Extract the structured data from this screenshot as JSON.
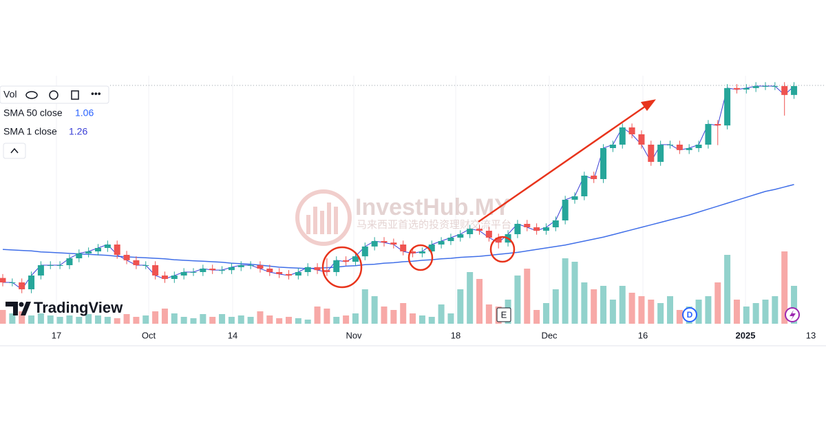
{
  "legend": {
    "volume": "Vol",
    "sma50": {
      "label": "SMA 50 close",
      "value": 1.06
    },
    "sma1": {
      "label": "SMA 1 close",
      "value": 1.26
    }
  },
  "watermark": {
    "brand": "InvestHub.MY",
    "tagline": "马来西亚首选的投资理财交流平台"
  },
  "logo": "TradingView",
  "markers": [
    "E",
    "D"
  ],
  "chart_data": {
    "type": "candlestick",
    "x_labels": [
      "17",
      "Oct",
      "14",
      "Nov",
      "18",
      "Dec",
      "16",
      "2025",
      "13"
    ],
    "ylim": [
      0.777,
      1.295
    ],
    "volume_lim": [
      0,
      110
    ],
    "up_color": "#26a69a",
    "down_color": "#ef5350",
    "up_volume_color": "#92d2cc",
    "down_volume_color": "#f7a9a7",
    "sma50_color": "#3f6ee8",
    "sma1_color": "#3a3fd6",
    "open": [
      0.87,
      0.861,
      0.861,
      0.847,
      0.875,
      0.896,
      0.896,
      0.896,
      0.91,
      0.92,
      0.924,
      0.931,
      0.938,
      0.917,
      0.906,
      0.896,
      0.896,
      0.875,
      0.868,
      0.875,
      0.882,
      0.882,
      0.889,
      0.886,
      0.886,
      0.892,
      0.896,
      0.896,
      0.889,
      0.882,
      0.878,
      0.875,
      0.882,
      0.892,
      0.886,
      0.882,
      0.906,
      0.903,
      0.914,
      0.934,
      0.945,
      0.942,
      0.938,
      0.924,
      0.92,
      0.924,
      0.938,
      0.945,
      0.952,
      0.959,
      0.97,
      0.966,
      0.952,
      0.942,
      0.959,
      0.98,
      0.973,
      0.966,
      0.973,
      0.987,
      1.029,
      1.036,
      1.078,
      1.071,
      1.134,
      1.141,
      1.176,
      1.162,
      1.141,
      1.106,
      1.141,
      1.141,
      1.13,
      1.134,
      1.141,
      1.183,
      1.18,
      1.256,
      1.253,
      1.256,
      1.26,
      1.26,
      1.26,
      1.242
    ],
    "high": [
      0.878,
      0.869,
      0.869,
      0.883,
      0.904,
      0.904,
      0.904,
      0.918,
      0.928,
      0.932,
      0.939,
      0.946,
      0.946,
      0.925,
      0.914,
      0.904,
      0.904,
      0.883,
      0.883,
      0.89,
      0.89,
      0.897,
      0.897,
      0.894,
      0.9,
      0.904,
      0.904,
      0.904,
      0.897,
      0.89,
      0.886,
      0.89,
      0.9,
      0.9,
      0.91,
      0.914,
      0.914,
      0.922,
      0.942,
      0.953,
      0.953,
      0.95,
      0.946,
      0.932,
      0.932,
      0.946,
      0.953,
      0.96,
      0.967,
      0.978,
      0.978,
      0.974,
      0.96,
      0.967,
      0.988,
      0.988,
      0.981,
      0.981,
      0.995,
      1.037,
      1.044,
      1.086,
      1.086,
      1.142,
      1.149,
      1.184,
      1.184,
      1.17,
      1.149,
      1.149,
      1.149,
      1.149,
      1.142,
      1.149,
      1.191,
      1.191,
      1.264,
      1.264,
      1.264,
      1.268,
      1.268,
      1.268,
      1.268,
      1.268
    ],
    "low": [
      0.853,
      0.853,
      0.839,
      0.839,
      0.867,
      0.888,
      0.888,
      0.888,
      0.902,
      0.912,
      0.916,
      0.923,
      0.909,
      0.898,
      0.888,
      0.888,
      0.867,
      0.86,
      0.86,
      0.867,
      0.874,
      0.874,
      0.878,
      0.878,
      0.878,
      0.884,
      0.888,
      0.881,
      0.874,
      0.87,
      0.867,
      0.867,
      0.874,
      0.878,
      0.874,
      0.874,
      0.895,
      0.895,
      0.906,
      0.926,
      0.934,
      0.93,
      0.916,
      0.912,
      0.912,
      0.916,
      0.93,
      0.937,
      0.944,
      0.951,
      0.958,
      0.944,
      0.93,
      0.934,
      0.951,
      0.965,
      0.958,
      0.958,
      0.965,
      0.979,
      1.021,
      1.028,
      1.063,
      1.063,
      1.126,
      1.133,
      1.154,
      1.133,
      1.098,
      1.098,
      1.133,
      1.122,
      1.122,
      1.126,
      1.133,
      1.14,
      1.172,
      1.245,
      1.245,
      1.248,
      1.252,
      1.252,
      1.2,
      1.234
    ],
    "close": [
      0.861,
      0.861,
      0.847,
      0.875,
      0.896,
      0.896,
      0.896,
      0.91,
      0.92,
      0.924,
      0.931,
      0.938,
      0.917,
      0.906,
      0.896,
      0.896,
      0.875,
      0.868,
      0.875,
      0.882,
      0.882,
      0.889,
      0.886,
      0.886,
      0.892,
      0.896,
      0.896,
      0.889,
      0.882,
      0.878,
      0.875,
      0.882,
      0.892,
      0.886,
      0.882,
      0.906,
      0.903,
      0.914,
      0.934,
      0.945,
      0.942,
      0.938,
      0.924,
      0.92,
      0.924,
      0.938,
      0.945,
      0.952,
      0.959,
      0.97,
      0.966,
      0.952,
      0.942,
      0.959,
      0.98,
      0.973,
      0.966,
      0.973,
      0.987,
      1.029,
      1.036,
      1.078,
      1.071,
      1.134,
      1.141,
      1.176,
      1.162,
      1.141,
      1.106,
      1.141,
      1.141,
      1.13,
      1.134,
      1.141,
      1.183,
      1.18,
      1.256,
      1.253,
      1.256,
      1.26,
      1.26,
      1.26,
      1.242,
      1.26
    ],
    "sma50": [
      0.928,
      0.927,
      0.926,
      0.925,
      0.923,
      0.922,
      0.921,
      0.92,
      0.919,
      0.918,
      0.917,
      0.916,
      0.914,
      0.913,
      0.912,
      0.911,
      0.91,
      0.909,
      0.907,
      0.906,
      0.905,
      0.904,
      0.903,
      0.902,
      0.9,
      0.899,
      0.898,
      0.896,
      0.894,
      0.892,
      0.891,
      0.89,
      0.889,
      0.89,
      0.891,
      0.892,
      0.894,
      0.895,
      0.897,
      0.898,
      0.9,
      0.901,
      0.903,
      0.904,
      0.906,
      0.907,
      0.909,
      0.91,
      0.912,
      0.913,
      0.914,
      0.916,
      0.918,
      0.92,
      0.922,
      0.925,
      0.928,
      0.931,
      0.934,
      0.937,
      0.941,
      0.945,
      0.949,
      0.953,
      0.958,
      0.963,
      0.968,
      0.973,
      0.978,
      0.983,
      0.988,
      0.993,
      0.998,
      1.004,
      1.01,
      1.016,
      1.022,
      1.028,
      1.034,
      1.04,
      1.046,
      1.05,
      1.055,
      1.06
    ],
    "volume": [
      20,
      15,
      18,
      12,
      15,
      12,
      10,
      12,
      10,
      14,
      12,
      10,
      8,
      14,
      10,
      12,
      18,
      22,
      15,
      10,
      8,
      14,
      10,
      14,
      10,
      12,
      10,
      18,
      12,
      8,
      10,
      8,
      6,
      25,
      22,
      10,
      12,
      15,
      50,
      40,
      25,
      20,
      30,
      15,
      12,
      10,
      28,
      15,
      50,
      75,
      65,
      28,
      25,
      35,
      70,
      80,
      20,
      30,
      50,
      95,
      90,
      60,
      50,
      55,
      35,
      55,
      45,
      40,
      35,
      30,
      40,
      20,
      25,
      35,
      40,
      60,
      100,
      35,
      25,
      30,
      35,
      40,
      105,
      55
    ]
  }
}
